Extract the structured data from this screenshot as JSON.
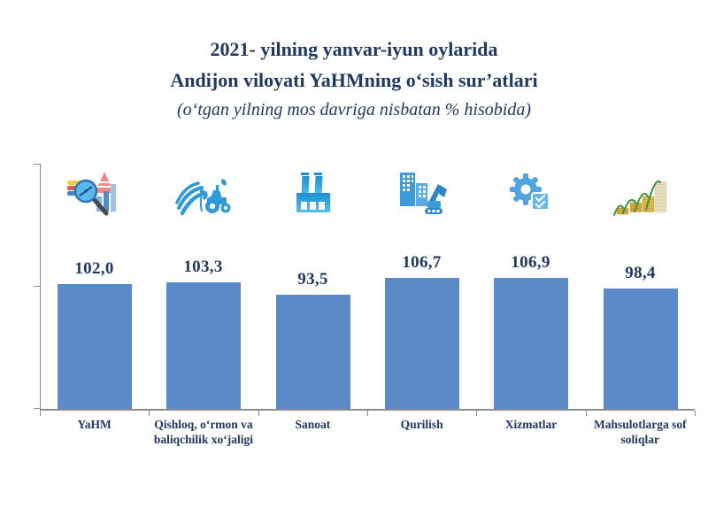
{
  "header": {
    "title_line1": "2021- yilning yanvar-iyun oylarida",
    "title_line2": "Andijon viloyati YaHMning o‘sish sur’atlari",
    "subtitle": "(o‘tgan yilning mos davriga nisbatan % hisobida)"
  },
  "chart_data": {
    "type": "bar",
    "title": "2021- yilning yanvar-iyun oylarida Andijon viloyati YaHMning o‘sish sur’atlari",
    "subtitle": "(o‘tgan yilning mos davriga nisbatan % hisobida)",
    "categories": [
      "YaHM",
      "Qishloq, o‘rmon va baliqchilik xo‘jaligi",
      "Sanoat",
      "Qurilish",
      "Xizmatlar",
      "Mahsulotlarga sof soliqlar"
    ],
    "values": [
      102.0,
      103.3,
      93.5,
      106.7,
      106.9,
      98.4
    ],
    "value_labels": [
      "102,0",
      "103,3",
      "93,5",
      "106,7",
      "106,9",
      "98,4"
    ],
    "icons": [
      "chart-magnifier-icon",
      "tractor-agriculture-icon",
      "factory-icon",
      "construction-excavator-icon",
      "gear-checklist-icon",
      "coins-growth-icon"
    ],
    "xlabel": "",
    "ylabel": "",
    "ylim": [
      0,
      200
    ],
    "y_ticks": [
      0,
      100,
      200
    ],
    "y_tick_labels_visible": false,
    "grid": false,
    "legend": false,
    "bar_color": "#5B8AC8"
  },
  "colors": {
    "bar": "#5B8AC8",
    "text_navy": "#1F3864",
    "axis_gray": "#8C8C8C"
  }
}
